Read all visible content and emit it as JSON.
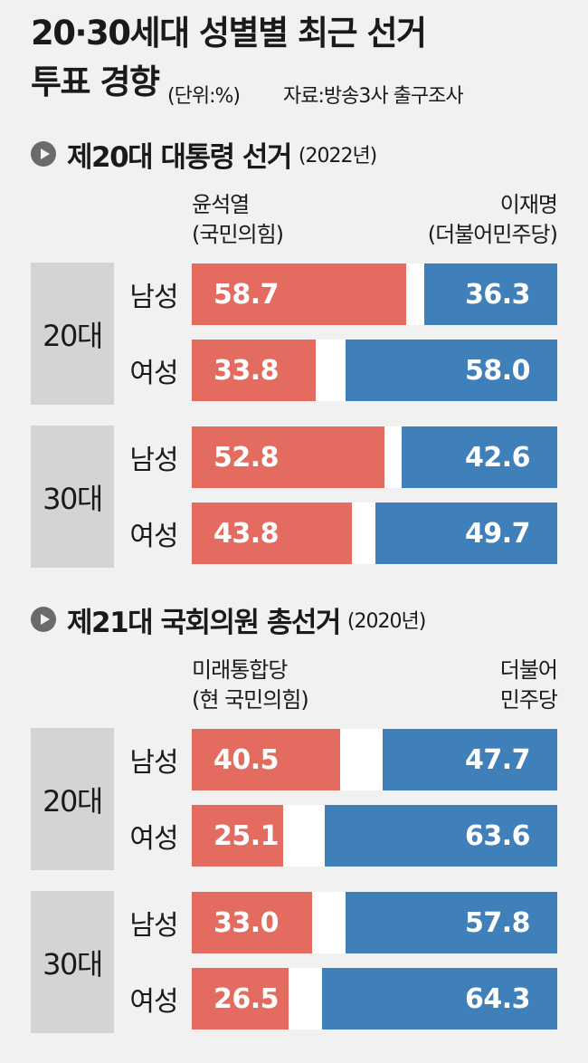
{
  "title_line1": "20·30세대 성별별 최근 선거",
  "title_line2": "투표 경향",
  "unit": "(단위:%)",
  "source": "자료:방송3사 출구조사",
  "chart_data": [
    {
      "type": "bar",
      "title": "제20대 대통령 선거",
      "year": "(2022년)",
      "left_party": [
        "윤석열",
        "(국민의힘)"
      ],
      "right_party": [
        "이재명",
        "(더불어민주당)"
      ],
      "groups": [
        {
          "age": "20대",
          "rows": [
            {
              "gender": "남성",
              "left": 58.7,
              "right": 36.3
            },
            {
              "gender": "여성",
              "left": 33.8,
              "right": 58.0
            }
          ]
        },
        {
          "age": "30대",
          "rows": [
            {
              "gender": "남성",
              "left": 52.8,
              "right": 42.6
            },
            {
              "gender": "여성",
              "left": 43.8,
              "right": 49.7
            }
          ]
        }
      ],
      "colors": {
        "left": "#e36b60",
        "right": "#3f80ba"
      }
    },
    {
      "type": "bar",
      "title": "제21대 국회의원 총선거",
      "year": "(2020년)",
      "left_party": [
        "미래통합당",
        "(현 국민의힘)"
      ],
      "right_party": [
        "더불어",
        "민주당"
      ],
      "groups": [
        {
          "age": "20대",
          "rows": [
            {
              "gender": "남성",
              "left": 40.5,
              "right": 47.7
            },
            {
              "gender": "여성",
              "left": 25.1,
              "right": 63.6
            }
          ]
        },
        {
          "age": "30대",
          "rows": [
            {
              "gender": "남성",
              "left": 33.0,
              "right": 57.8
            },
            {
              "gender": "여성",
              "left": 26.5,
              "right": 64.3
            }
          ]
        }
      ],
      "colors": {
        "left": "#e36b60",
        "right": "#3f80ba"
      }
    }
  ]
}
